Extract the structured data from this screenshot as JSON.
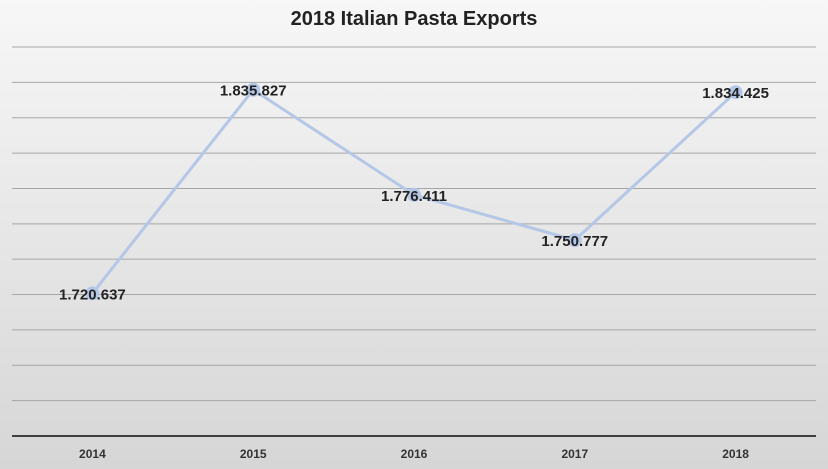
{
  "chart_data": {
    "type": "line",
    "title": "2018 Italian Pasta Exports",
    "xlabel": "",
    "ylabel": "",
    "categories": [
      "2014",
      "2015",
      "2016",
      "2017",
      "2018"
    ],
    "series": [
      {
        "values": [
          1720.637,
          1835.827,
          1776.411,
          1750.777,
          1834.425
        ],
        "labels": [
          "1.720.637",
          "1.835.827",
          "1.776.411",
          "1.750.777",
          "1.834.425"
        ]
      }
    ],
    "ylim": [
      1640,
      1860
    ],
    "grid": true,
    "legend": "none",
    "colors": {
      "line": "#b4c7e7",
      "axis": "#404040",
      "grid": "#a6a6a6"
    }
  }
}
